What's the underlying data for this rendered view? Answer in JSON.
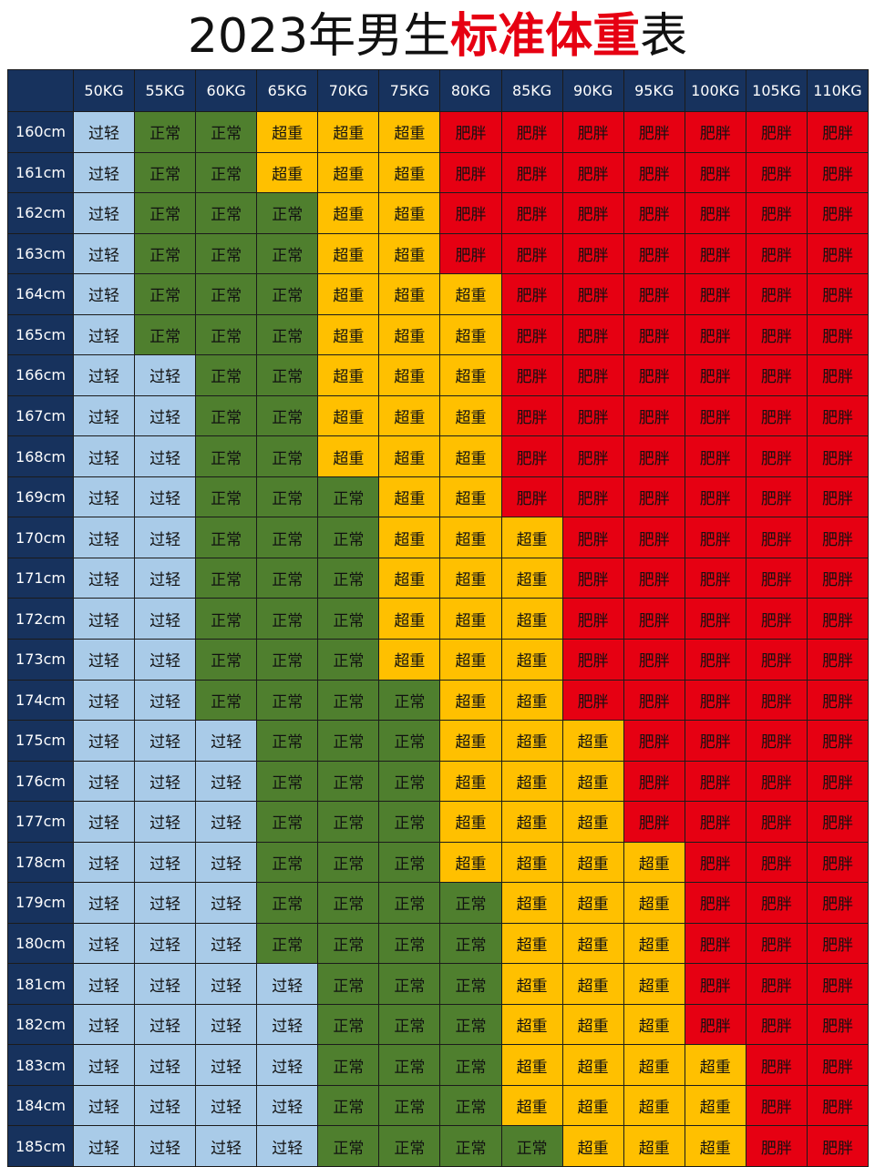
{
  "title": {
    "prefix": "2023年男生",
    "accent": "标准体重",
    "suffix": "表"
  },
  "colors": {
    "header": "#17325d",
    "过轻": "#a9cbe8",
    "正常": "#4f7f2e",
    "超重": "#ffc000",
    "肥胖": "#e60012",
    "accent": "#e60012"
  },
  "chart_data": {
    "type": "table",
    "columns": [
      "50KG",
      "55KG",
      "60KG",
      "65KG",
      "70KG",
      "75KG",
      "80KG",
      "85KG",
      "90KG",
      "95KG",
      "100KG",
      "105KG",
      "110KG"
    ],
    "rows": [
      "160cm",
      "161cm",
      "162cm",
      "163cm",
      "164cm",
      "165cm",
      "166cm",
      "167cm",
      "168cm",
      "169cm",
      "170cm",
      "171cm",
      "172cm",
      "173cm",
      "174cm",
      "175cm",
      "176cm",
      "177cm",
      "178cm",
      "179cm",
      "180cm",
      "181cm",
      "182cm",
      "183cm",
      "184cm",
      "185cm"
    ],
    "cells": [
      [
        "过轻",
        "正常",
        "正常",
        "超重",
        "超重",
        "超重",
        "肥胖",
        "肥胖",
        "肥胖",
        "肥胖",
        "肥胖",
        "肥胖",
        "肥胖"
      ],
      [
        "过轻",
        "正常",
        "正常",
        "超重",
        "超重",
        "超重",
        "肥胖",
        "肥胖",
        "肥胖",
        "肥胖",
        "肥胖",
        "肥胖",
        "肥胖"
      ],
      [
        "过轻",
        "正常",
        "正常",
        "正常",
        "超重",
        "超重",
        "肥胖",
        "肥胖",
        "肥胖",
        "肥胖",
        "肥胖",
        "肥胖",
        "肥胖"
      ],
      [
        "过轻",
        "正常",
        "正常",
        "正常",
        "超重",
        "超重",
        "肥胖",
        "肥胖",
        "肥胖",
        "肥胖",
        "肥胖",
        "肥胖",
        "肥胖"
      ],
      [
        "过轻",
        "正常",
        "正常",
        "正常",
        "超重",
        "超重",
        "超重",
        "肥胖",
        "肥胖",
        "肥胖",
        "肥胖",
        "肥胖",
        "肥胖"
      ],
      [
        "过轻",
        "正常",
        "正常",
        "正常",
        "超重",
        "超重",
        "超重",
        "肥胖",
        "肥胖",
        "肥胖",
        "肥胖",
        "肥胖",
        "肥胖"
      ],
      [
        "过轻",
        "过轻",
        "正常",
        "正常",
        "超重",
        "超重",
        "超重",
        "肥胖",
        "肥胖",
        "肥胖",
        "肥胖",
        "肥胖",
        "肥胖"
      ],
      [
        "过轻",
        "过轻",
        "正常",
        "正常",
        "超重",
        "超重",
        "超重",
        "肥胖",
        "肥胖",
        "肥胖",
        "肥胖",
        "肥胖",
        "肥胖"
      ],
      [
        "过轻",
        "过轻",
        "正常",
        "正常",
        "超重",
        "超重",
        "超重",
        "肥胖",
        "肥胖",
        "肥胖",
        "肥胖",
        "肥胖",
        "肥胖"
      ],
      [
        "过轻",
        "过轻",
        "正常",
        "正常",
        "正常",
        "超重",
        "超重",
        "肥胖",
        "肥胖",
        "肥胖",
        "肥胖",
        "肥胖",
        "肥胖"
      ],
      [
        "过轻",
        "过轻",
        "正常",
        "正常",
        "正常",
        "超重",
        "超重",
        "超重",
        "肥胖",
        "肥胖",
        "肥胖",
        "肥胖",
        "肥胖"
      ],
      [
        "过轻",
        "过轻",
        "正常",
        "正常",
        "正常",
        "超重",
        "超重",
        "超重",
        "肥胖",
        "肥胖",
        "肥胖",
        "肥胖",
        "肥胖"
      ],
      [
        "过轻",
        "过轻",
        "正常",
        "正常",
        "正常",
        "超重",
        "超重",
        "超重",
        "肥胖",
        "肥胖",
        "肥胖",
        "肥胖",
        "肥胖"
      ],
      [
        "过轻",
        "过轻",
        "正常",
        "正常",
        "正常",
        "超重",
        "超重",
        "超重",
        "肥胖",
        "肥胖",
        "肥胖",
        "肥胖",
        "肥胖"
      ],
      [
        "过轻",
        "过轻",
        "正常",
        "正常",
        "正常",
        "正常",
        "超重",
        "超重",
        "肥胖",
        "肥胖",
        "肥胖",
        "肥胖",
        "肥胖"
      ],
      [
        "过轻",
        "过轻",
        "过轻",
        "正常",
        "正常",
        "正常",
        "超重",
        "超重",
        "超重",
        "肥胖",
        "肥胖",
        "肥胖",
        "肥胖"
      ],
      [
        "过轻",
        "过轻",
        "过轻",
        "正常",
        "正常",
        "正常",
        "超重",
        "超重",
        "超重",
        "肥胖",
        "肥胖",
        "肥胖",
        "肥胖"
      ],
      [
        "过轻",
        "过轻",
        "过轻",
        "正常",
        "正常",
        "正常",
        "超重",
        "超重",
        "超重",
        "肥胖",
        "肥胖",
        "肥胖",
        "肥胖"
      ],
      [
        "过轻",
        "过轻",
        "过轻",
        "正常",
        "正常",
        "正常",
        "超重",
        "超重",
        "超重",
        "超重",
        "肥胖",
        "肥胖",
        "肥胖"
      ],
      [
        "过轻",
        "过轻",
        "过轻",
        "正常",
        "正常",
        "正常",
        "正常",
        "超重",
        "超重",
        "超重",
        "肥胖",
        "肥胖",
        "肥胖"
      ],
      [
        "过轻",
        "过轻",
        "过轻",
        "正常",
        "正常",
        "正常",
        "正常",
        "超重",
        "超重",
        "超重",
        "肥胖",
        "肥胖",
        "肥胖"
      ],
      [
        "过轻",
        "过轻",
        "过轻",
        "过轻",
        "正常",
        "正常",
        "正常",
        "超重",
        "超重",
        "超重",
        "肥胖",
        "肥胖",
        "肥胖"
      ],
      [
        "过轻",
        "过轻",
        "过轻",
        "过轻",
        "正常",
        "正常",
        "正常",
        "超重",
        "超重",
        "超重",
        "肥胖",
        "肥胖",
        "肥胖"
      ],
      [
        "过轻",
        "过轻",
        "过轻",
        "过轻",
        "正常",
        "正常",
        "正常",
        "超重",
        "超重",
        "超重",
        "超重",
        "肥胖",
        "肥胖"
      ],
      [
        "过轻",
        "过轻",
        "过轻",
        "过轻",
        "正常",
        "正常",
        "正常",
        "超重",
        "超重",
        "超重",
        "超重",
        "肥胖",
        "肥胖"
      ],
      [
        "过轻",
        "过轻",
        "过轻",
        "过轻",
        "正常",
        "正常",
        "正常",
        "正常",
        "超重",
        "超重",
        "超重",
        "肥胖",
        "肥胖"
      ]
    ]
  }
}
